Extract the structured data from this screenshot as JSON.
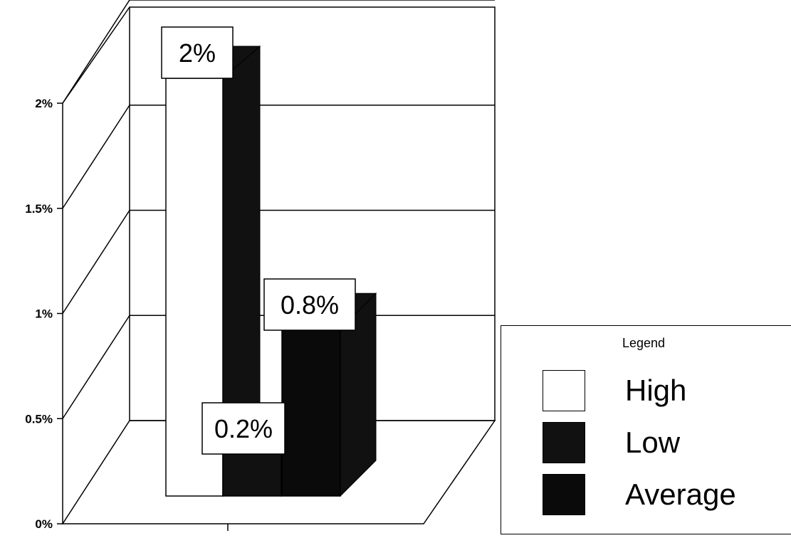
{
  "chart_data": {
    "type": "bar",
    "title": "",
    "xlabel": "",
    "ylabel": "",
    "categories": [
      ""
    ],
    "ylim": [
      0,
      2
    ],
    "y_ticks": [
      "0%",
      "0.5%",
      "1%",
      "1.5%",
      "2%"
    ],
    "series": [
      {
        "name": "High",
        "values": [
          2.0
        ],
        "label": "2%",
        "color": "#ffffff"
      },
      {
        "name": "Low",
        "values": [
          0.2
        ],
        "label": "0.2%",
        "color": "#111111"
      },
      {
        "name": "Average",
        "values": [
          0.8
        ],
        "label": "0.8%",
        "color": "#0a0a0a"
      }
    ],
    "grid": true,
    "legend": {
      "title": "Legend",
      "placement": "bottom-right"
    },
    "style": "3d"
  }
}
